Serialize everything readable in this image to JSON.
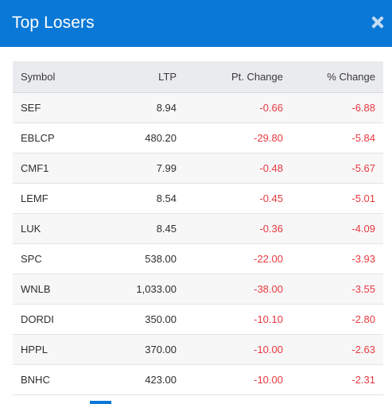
{
  "modal": {
    "title": "Top Losers",
    "close_icon": "close-icon"
  },
  "colors": {
    "header_bg": "#0a78d6",
    "negative": "#e8393f",
    "table_header_bg": "#eaebee"
  },
  "table": {
    "headers": {
      "symbol": "Symbol",
      "ltp": "LTP",
      "pt_change": "Pt. Change",
      "pct_change": "% Change"
    },
    "rows": [
      {
        "symbol": "SEF",
        "ltp": "8.94",
        "pt_change": "-0.66",
        "pct_change": "-6.88"
      },
      {
        "symbol": "EBLCP",
        "ltp": "480.20",
        "pt_change": "-29.80",
        "pct_change": "-5.84"
      },
      {
        "symbol": "CMF1",
        "ltp": "7.99",
        "pt_change": "-0.48",
        "pct_change": "-5.67"
      },
      {
        "symbol": "LEMF",
        "ltp": "8.54",
        "pt_change": "-0.45",
        "pct_change": "-5.01"
      },
      {
        "symbol": "LUK",
        "ltp": "8.45",
        "pt_change": "-0.36",
        "pct_change": "-4.09"
      },
      {
        "symbol": "SPC",
        "ltp": "538.00",
        "pt_change": "-22.00",
        "pct_change": "-3.93"
      },
      {
        "symbol": "WNLB",
        "ltp": "1,033.00",
        "pt_change": "-38.00",
        "pct_change": "-3.55"
      },
      {
        "symbol": "DORDI",
        "ltp": "350.00",
        "pt_change": "-10.10",
        "pct_change": "-2.80"
      },
      {
        "symbol": "HPPL",
        "ltp": "370.00",
        "pt_change": "-10.00",
        "pct_change": "-2.63"
      },
      {
        "symbol": "BNHC",
        "ltp": "423.00",
        "pt_change": "-10.00",
        "pct_change": "-2.31"
      }
    ]
  }
}
